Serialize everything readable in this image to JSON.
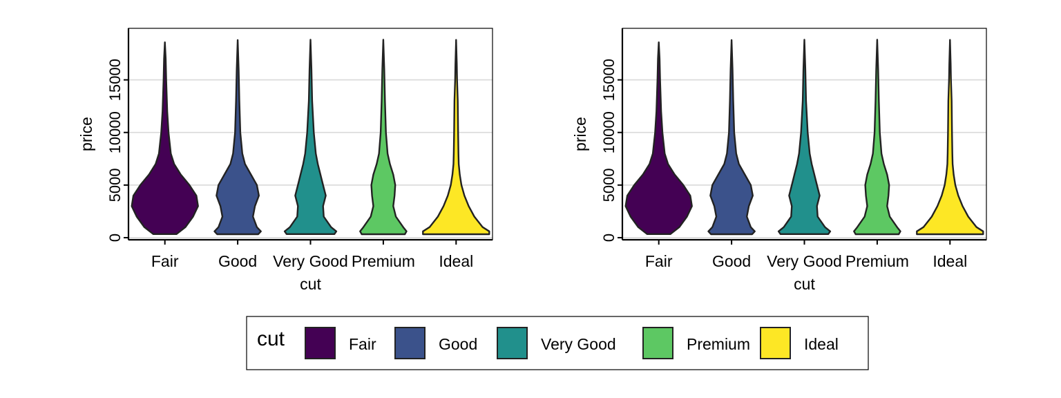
{
  "colors": {
    "Fair": "#440154",
    "Good": "#3B528B",
    "Very Good": "#21908C",
    "Premium": "#5DC863",
    "Ideal": "#FDE725",
    "outline": "#222222",
    "grid": "#D9D9D9",
    "frame": "#000000"
  },
  "chart_data": [
    {
      "type": "violin",
      "xlabel": "cut",
      "ylabel": "price",
      "categories": [
        "Fair",
        "Good",
        "Very Good",
        "Premium",
        "Ideal"
      ],
      "ylim": [
        -200,
        19900
      ],
      "yticks": [
        0,
        5000,
        10000,
        15000
      ],
      "ytick_labels": [
        "0",
        "5000",
        "10000",
        "15000"
      ],
      "grid": "major horizontal",
      "y_min": [
        337,
        327,
        336,
        326,
        326
      ],
      "y_max": [
        18574,
        18788,
        18818,
        18823,
        18806
      ],
      "densities": [
        [
          [
            337,
            0.35
          ],
          [
            1000,
            0.62
          ],
          [
            2000,
            0.85
          ],
          [
            3000,
            1.0
          ],
          [
            4000,
            0.95
          ],
          [
            5000,
            0.74
          ],
          [
            6000,
            0.48
          ],
          [
            7000,
            0.28
          ],
          [
            8000,
            0.18
          ],
          [
            10000,
            0.11
          ],
          [
            12000,
            0.07
          ],
          [
            15000,
            0.04
          ],
          [
            17000,
            0.025
          ],
          [
            18574,
            0
          ]
        ],
        [
          [
            327,
            0.62
          ],
          [
            600,
            0.7
          ],
          [
            1000,
            0.58
          ],
          [
            2000,
            0.46
          ],
          [
            3000,
            0.52
          ],
          [
            4000,
            0.64
          ],
          [
            5000,
            0.58
          ],
          [
            6000,
            0.4
          ],
          [
            7000,
            0.22
          ],
          [
            8000,
            0.14
          ],
          [
            10000,
            0.08
          ],
          [
            13000,
            0.05
          ],
          [
            16000,
            0.03
          ],
          [
            18788,
            0
          ]
        ],
        [
          [
            336,
            0.72
          ],
          [
            600,
            0.78
          ],
          [
            1000,
            0.62
          ],
          [
            2000,
            0.4
          ],
          [
            3000,
            0.38
          ],
          [
            4000,
            0.46
          ],
          [
            5000,
            0.38
          ],
          [
            6000,
            0.3
          ],
          [
            7000,
            0.22
          ],
          [
            8000,
            0.16
          ],
          [
            10000,
            0.1
          ],
          [
            13000,
            0.05
          ],
          [
            16000,
            0.03
          ],
          [
            18818,
            0
          ]
        ],
        [
          [
            326,
            0.65
          ],
          [
            600,
            0.7
          ],
          [
            1000,
            0.6
          ],
          [
            2000,
            0.38
          ],
          [
            3000,
            0.3
          ],
          [
            4000,
            0.34
          ],
          [
            5000,
            0.36
          ],
          [
            6000,
            0.3
          ],
          [
            7000,
            0.2
          ],
          [
            8000,
            0.13
          ],
          [
            10000,
            0.08
          ],
          [
            13000,
            0.05
          ],
          [
            16000,
            0.03
          ],
          [
            18823,
            0
          ]
        ],
        [
          [
            326,
            1.0
          ],
          [
            600,
            1.0
          ],
          [
            1000,
            0.8
          ],
          [
            2000,
            0.55
          ],
          [
            3000,
            0.38
          ],
          [
            4000,
            0.25
          ],
          [
            5000,
            0.16
          ],
          [
            6000,
            0.11
          ],
          [
            7000,
            0.08
          ],
          [
            8000,
            0.07
          ],
          [
            10000,
            0.06
          ],
          [
            13000,
            0.05
          ],
          [
            15000,
            0.03
          ],
          [
            16500,
            0.02
          ],
          [
            18806,
            0
          ]
        ]
      ]
    },
    {
      "type": "violin",
      "xlabel": "cut",
      "ylabel": "price",
      "categories": [
        "Fair",
        "Good",
        "Very Good",
        "Premium",
        "Ideal"
      ],
      "ylim": [
        -200,
        19900
      ],
      "yticks": [
        0,
        5000,
        10000,
        15000
      ],
      "ytick_labels": [
        "0",
        "5000",
        "10000",
        "15000"
      ],
      "grid": "major horizontal",
      "y_min": [
        337,
        327,
        336,
        326,
        326
      ],
      "y_max": [
        18574,
        18788,
        18818,
        18823,
        18806
      ],
      "densities": [
        [
          [
            337,
            0.35
          ],
          [
            1000,
            0.62
          ],
          [
            2000,
            0.85
          ],
          [
            3000,
            1.0
          ],
          [
            4000,
            0.95
          ],
          [
            5000,
            0.74
          ],
          [
            6000,
            0.48
          ],
          [
            7000,
            0.28
          ],
          [
            8000,
            0.18
          ],
          [
            10000,
            0.11
          ],
          [
            12000,
            0.07
          ],
          [
            15000,
            0.04
          ],
          [
            17000,
            0.025
          ],
          [
            18574,
            0
          ]
        ],
        [
          [
            327,
            0.62
          ],
          [
            600,
            0.7
          ],
          [
            1000,
            0.58
          ],
          [
            2000,
            0.46
          ],
          [
            3000,
            0.52
          ],
          [
            4000,
            0.64
          ],
          [
            5000,
            0.58
          ],
          [
            6000,
            0.4
          ],
          [
            7000,
            0.22
          ],
          [
            8000,
            0.14
          ],
          [
            10000,
            0.08
          ],
          [
            13000,
            0.05
          ],
          [
            16000,
            0.03
          ],
          [
            18788,
            0
          ]
        ],
        [
          [
            336,
            0.72
          ],
          [
            600,
            0.78
          ],
          [
            1000,
            0.62
          ],
          [
            2000,
            0.4
          ],
          [
            3000,
            0.38
          ],
          [
            4000,
            0.46
          ],
          [
            5000,
            0.38
          ],
          [
            6000,
            0.3
          ],
          [
            7000,
            0.22
          ],
          [
            8000,
            0.16
          ],
          [
            10000,
            0.1
          ],
          [
            13000,
            0.05
          ],
          [
            16000,
            0.03
          ],
          [
            18818,
            0
          ]
        ],
        [
          [
            326,
            0.65
          ],
          [
            600,
            0.7
          ],
          [
            1000,
            0.6
          ],
          [
            2000,
            0.38
          ],
          [
            3000,
            0.3
          ],
          [
            4000,
            0.34
          ],
          [
            5000,
            0.36
          ],
          [
            6000,
            0.3
          ],
          [
            7000,
            0.2
          ],
          [
            8000,
            0.13
          ],
          [
            10000,
            0.08
          ],
          [
            13000,
            0.05
          ],
          [
            16000,
            0.03
          ],
          [
            18823,
            0
          ]
        ],
        [
          [
            326,
            1.0
          ],
          [
            600,
            1.0
          ],
          [
            1000,
            0.8
          ],
          [
            2000,
            0.55
          ],
          [
            3000,
            0.38
          ],
          [
            4000,
            0.25
          ],
          [
            5000,
            0.16
          ],
          [
            6000,
            0.11
          ],
          [
            7000,
            0.08
          ],
          [
            8000,
            0.07
          ],
          [
            10000,
            0.06
          ],
          [
            13000,
            0.05
          ],
          [
            15000,
            0.03
          ],
          [
            16500,
            0.02
          ],
          [
            18806,
            0
          ]
        ]
      ]
    }
  ],
  "legend": {
    "title": "cut",
    "position": "bottom",
    "items": [
      "Fair",
      "Good",
      "Very Good",
      "Premium",
      "Ideal"
    ]
  }
}
